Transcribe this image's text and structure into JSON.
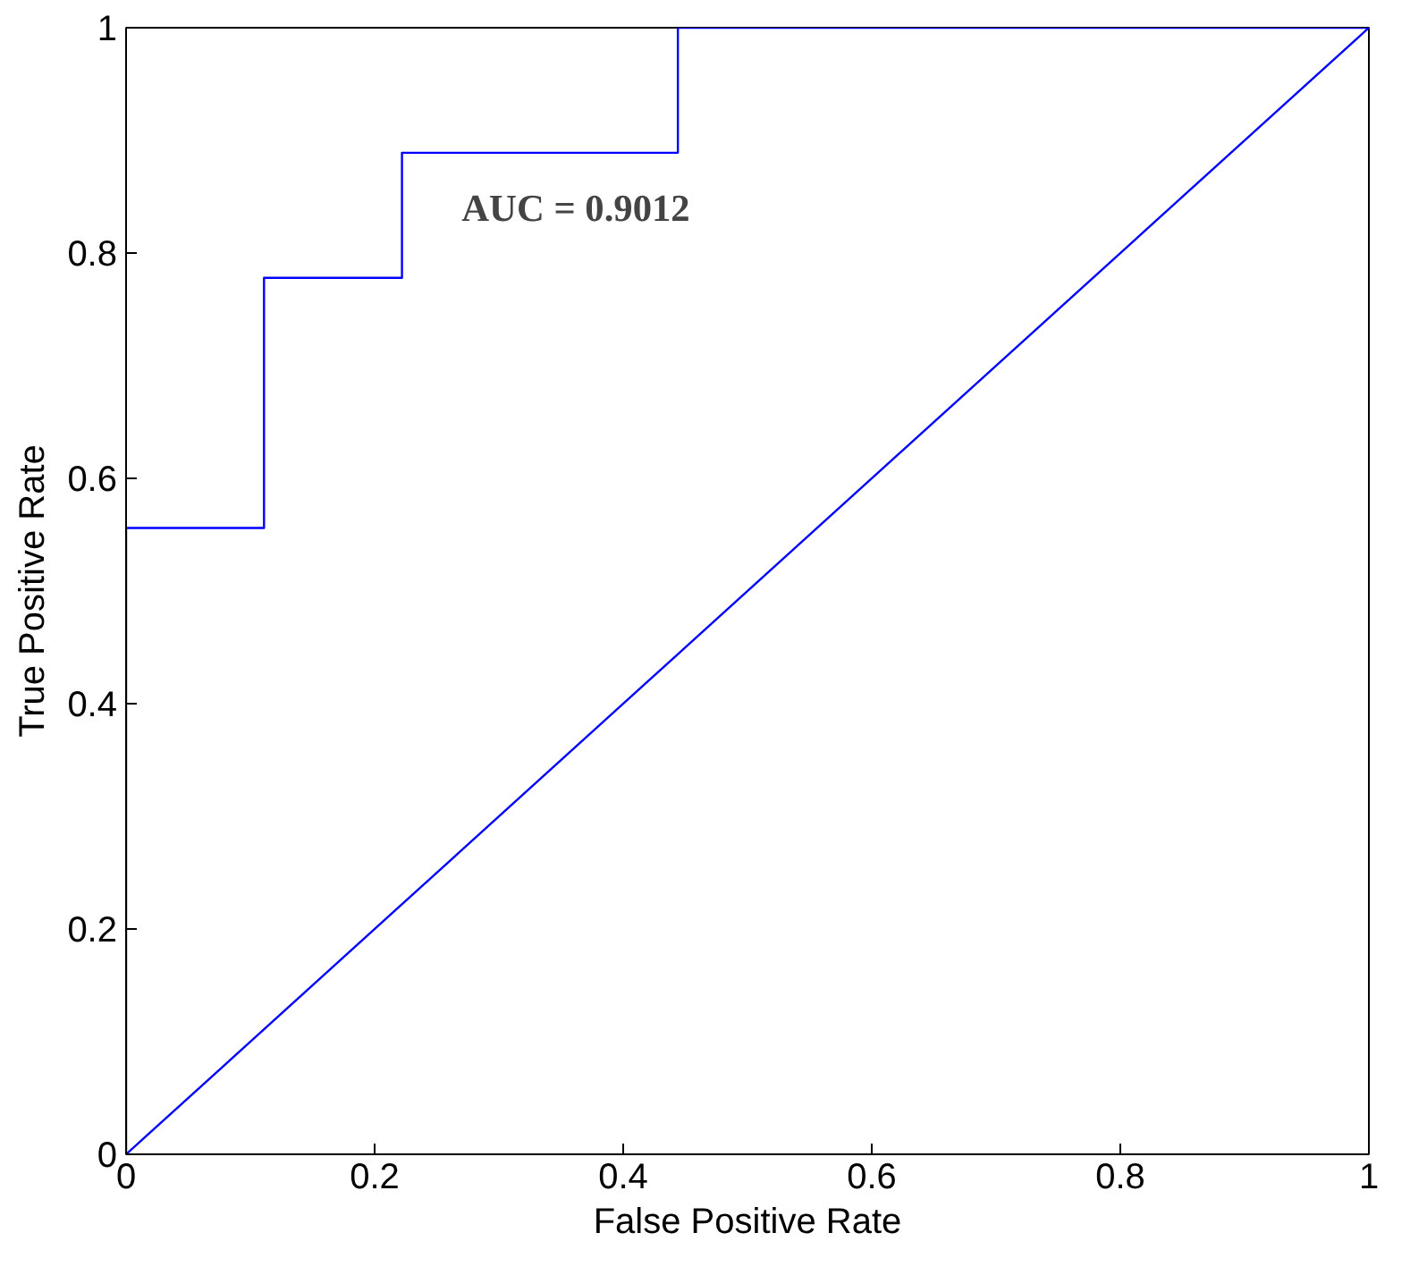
{
  "chart_data": {
    "type": "line",
    "xlabel": "False Positive Rate",
    "ylabel": "True Positive Rate",
    "annotations": [
      "AUC = 0.9012"
    ],
    "xlim": [
      0,
      1
    ],
    "ylim": [
      0,
      1
    ],
    "xticks": [
      0,
      0.2,
      0.4,
      0.6,
      0.8,
      1
    ],
    "yticks": [
      0,
      0.2,
      0.4,
      0.6,
      0.8,
      1
    ],
    "grid": false,
    "marker": "none",
    "line_style": "solid",
    "series": [
      {
        "color": "#0000ff",
        "x": [
          0,
          0,
          0.111,
          0.111,
          0.222,
          0.222,
          0.444,
          0.444,
          1
        ],
        "values": [
          0,
          0.556,
          0.556,
          0.778,
          0.778,
          0.889,
          0.889,
          1,
          1
        ]
      },
      {
        "color": "#0000ff",
        "x": [
          0,
          1
        ],
        "values": [
          0,
          1
        ]
      }
    ]
  }
}
